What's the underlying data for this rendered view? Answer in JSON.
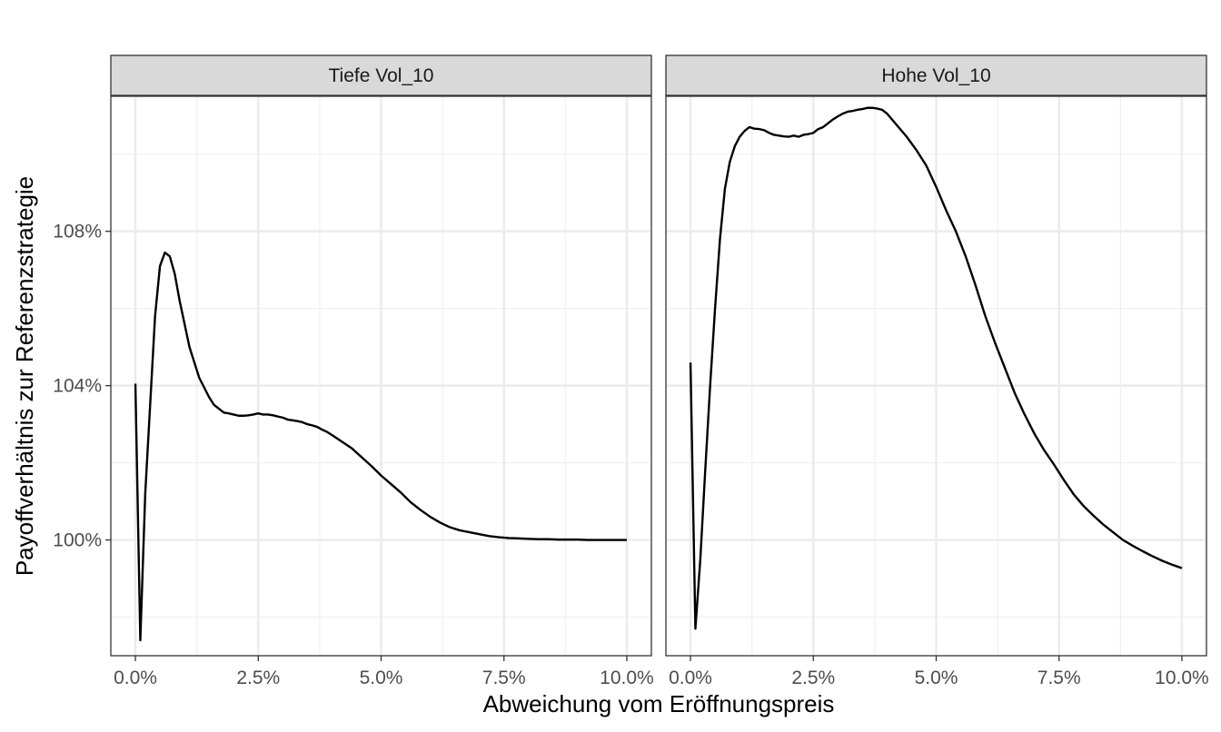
{
  "chart_data": {
    "type": "line",
    "xlabel": "Abweichung vom Eröffnungspreis",
    "ylabel": "Payoffverhältnis zur Referenzstrategie",
    "xlim": [
      -0.5,
      10.5
    ],
    "ylim": [
      97.0,
      111.5
    ],
    "x_ticks": [
      0,
      2.5,
      5,
      7.5,
      10
    ],
    "x_tick_labels": [
      "0.0%",
      "2.5%",
      "5.0%",
      "7.5%",
      "10.0%"
    ],
    "y_ticks": [
      100,
      104,
      108
    ],
    "y_tick_labels": [
      "100%",
      "104%",
      "108%"
    ],
    "grid": true,
    "line_color": "#000000",
    "panels": [
      {
        "title": "Tiefe Vol_10",
        "series": [
          {
            "x": [
              0.0,
              0.1,
              0.2,
              0.3,
              0.4,
              0.5,
              0.6,
              0.7,
              0.8,
              0.9,
              1.0,
              1.1,
              1.2,
              1.3,
              1.4,
              1.5,
              1.6,
              1.7,
              1.8,
              1.9,
              2.0,
              2.1,
              2.2,
              2.3,
              2.4,
              2.5,
              2.6,
              2.7,
              2.8,
              2.9,
              3.0,
              3.1,
              3.2,
              3.3,
              3.4,
              3.5,
              3.6,
              3.7,
              3.8,
              3.9,
              4.0,
              4.2,
              4.4,
              4.6,
              4.8,
              5.0,
              5.2,
              5.4,
              5.6,
              5.8,
              6.0,
              6.2,
              6.4,
              6.6,
              6.8,
              7.0,
              7.2,
              7.4,
              7.6,
              7.8,
              8.0,
              8.2,
              8.4,
              8.6,
              8.8,
              9.0,
              9.2,
              9.4,
              9.6,
              9.8,
              10.0
            ],
            "y": [
              104.05,
              97.4,
              101.2,
              103.5,
              105.8,
              107.1,
              107.45,
              107.35,
              106.9,
              106.2,
              105.6,
              105.0,
              104.6,
              104.2,
              103.95,
              103.7,
              103.5,
              103.4,
              103.3,
              103.28,
              103.25,
              103.22,
              103.22,
              103.23,
              103.25,
              103.28,
              103.25,
              103.25,
              103.23,
              103.2,
              103.17,
              103.12,
              103.1,
              103.08,
              103.05,
              103.0,
              102.97,
              102.93,
              102.86,
              102.8,
              102.72,
              102.55,
              102.38,
              102.15,
              101.92,
              101.67,
              101.45,
              101.23,
              100.98,
              100.78,
              100.6,
              100.45,
              100.33,
              100.25,
              100.2,
              100.15,
              100.1,
              100.07,
              100.05,
              100.04,
              100.03,
              100.02,
              100.02,
              100.01,
              100.01,
              100.01,
              100.0,
              100.0,
              100.0,
              100.0,
              100.0
            ]
          }
        ]
      },
      {
        "title": "Hohe Vol_10",
        "series": [
          {
            "x": [
              0.0,
              0.1,
              0.2,
              0.3,
              0.4,
              0.5,
              0.6,
              0.7,
              0.8,
              0.9,
              1.0,
              1.1,
              1.2,
              1.3,
              1.4,
              1.5,
              1.6,
              1.7,
              1.8,
              1.9,
              2.0,
              2.1,
              2.2,
              2.3,
              2.4,
              2.5,
              2.6,
              2.7,
              2.8,
              2.9,
              3.0,
              3.1,
              3.2,
              3.3,
              3.4,
              3.5,
              3.6,
              3.7,
              3.8,
              3.9,
              4.0,
              4.2,
              4.4,
              4.6,
              4.8,
              5.0,
              5.2,
              5.4,
              5.6,
              5.8,
              6.0,
              6.2,
              6.4,
              6.6,
              6.8,
              7.0,
              7.2,
              7.4,
              7.6,
              7.8,
              8.0,
              8.2,
              8.4,
              8.6,
              8.8,
              9.0,
              9.2,
              9.4,
              9.6,
              9.8,
              10.0
            ],
            "y": [
              104.6,
              97.7,
              99.5,
              101.8,
              104.0,
              106.0,
              107.8,
              109.1,
              109.8,
              110.2,
              110.45,
              110.6,
              110.7,
              110.66,
              110.65,
              110.62,
              110.55,
              110.5,
              110.48,
              110.46,
              110.45,
              110.48,
              110.45,
              110.5,
              110.52,
              110.55,
              110.65,
              110.7,
              110.8,
              110.9,
              110.98,
              111.05,
              111.1,
              111.12,
              111.15,
              111.17,
              111.2,
              111.2,
              111.18,
              111.15,
              111.05,
              110.75,
              110.45,
              110.1,
              109.7,
              109.15,
              108.55,
              108.0,
              107.35,
              106.6,
              105.8,
              105.1,
              104.45,
              103.8,
              103.25,
              102.75,
              102.32,
              101.95,
              101.55,
              101.18,
              100.88,
              100.63,
              100.4,
              100.2,
              100.0,
              99.85,
              99.71,
              99.58,
              99.46,
              99.36,
              99.27
            ]
          }
        ]
      }
    ]
  }
}
